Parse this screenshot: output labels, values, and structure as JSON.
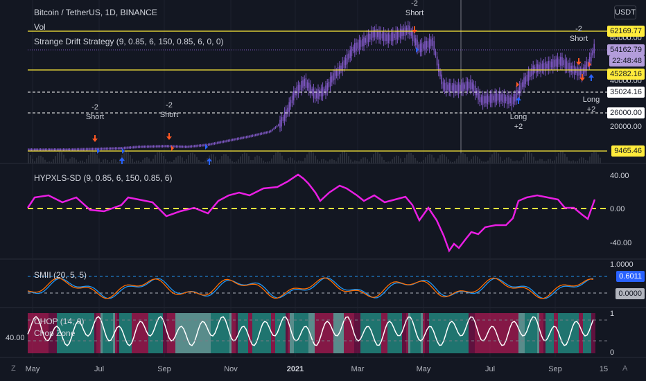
{
  "header": {
    "symbol_title": "Bitcoin / TetherUS, 1D, BINANCE",
    "vol_label": "Vol",
    "strategy_label": "Strange Drift Strategy (9, 0.85, 6, 150, 0.85, 6, 0, 0)",
    "currency_button": "USDT"
  },
  "price_axis": {
    "labels": [
      "60000.00",
      "40000.00",
      "20000.00"
    ],
    "tags": [
      {
        "text": "62169.77",
        "bg": "#ffeb3b",
        "fg": "#131722"
      },
      {
        "text": "54162.79",
        "bg": "#b39ddb",
        "fg": "#131722"
      },
      {
        "text": "22:48:48",
        "bg": "#b39ddb",
        "fg": "#131722"
      },
      {
        "text": "45282.16",
        "bg": "#ffeb3b",
        "fg": "#131722"
      },
      {
        "text": "35024.16",
        "bg": "#ffffff",
        "fg": "#131722"
      },
      {
        "text": "26000.00",
        "bg": "#ffffff",
        "fg": "#131722"
      },
      {
        "text": "9465.46",
        "bg": "#ffeb3b",
        "fg": "#131722"
      }
    ]
  },
  "signals": [
    {
      "qty": "-2",
      "side": "Short"
    },
    {
      "qty": "-2",
      "side": "Short"
    },
    {
      "qty": "-2",
      "side": "Short"
    },
    {
      "qty": "-2",
      "side": "Short"
    },
    {
      "qty": "+2",
      "side": "Long"
    },
    {
      "qty": "+2",
      "side": "Long"
    }
  ],
  "hypxls": {
    "label": "HYPXLS-SD (9, 0.85, 6, 150, 0.85, 6)",
    "axis": [
      "40.00",
      "0.00",
      "-40.00"
    ]
  },
  "smii": {
    "label": "SMII (20, 5, 5)",
    "axis_top": "1.0000",
    "tag_value": "0.6011",
    "tag_zero": "0.0000"
  },
  "chop": {
    "label_main": "CHOP (14, 0)",
    "label_zone": "Chop Zone",
    "left_value": "40.00",
    "axis": [
      "1",
      "0"
    ]
  },
  "x_axis": [
    "May",
    "Jul",
    "Sep",
    "Nov",
    "2021",
    "Mar",
    "May",
    "Jul",
    "Sep",
    "15"
  ],
  "corner": {
    "left": "Z",
    "right": "A"
  },
  "colors": {
    "background": "#131722",
    "candles": "#7e57c2",
    "yellow_level": "#ffeb3b",
    "magenta": "#e91ee3",
    "smii_blue": "#2196f3",
    "smii_orange": "#ff6d00",
    "short_arrow": "#ff5722",
    "long_arrow": "#2962ff"
  }
}
